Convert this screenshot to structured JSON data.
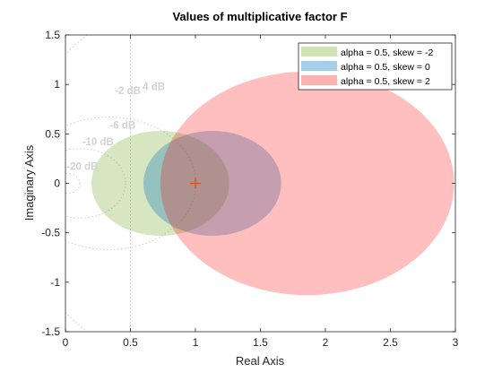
{
  "chart_data": {
    "type": "scatter",
    "title": "Values of multiplicative factor F",
    "xlabel": "Real Axis",
    "ylabel": "Imaginary Axis",
    "xlim": [
      0,
      3
    ],
    "ylim": [
      -1.5,
      1.5
    ],
    "xticks": [
      0,
      0.5,
      1,
      1.5,
      2,
      2.5,
      3
    ],
    "xtick_labels": [
      "0",
      "0.5",
      "1",
      "1.5",
      "2",
      "2.5",
      "3"
    ],
    "yticks": [
      1.5,
      1,
      0.5,
      0,
      -0.5,
      -1,
      -1.5
    ],
    "ytick_labels": [
      "1.5",
      "1",
      "0.5",
      "0",
      "-0.5",
      "-1",
      "-1.5"
    ],
    "grid": false,
    "legend_location": "top-right",
    "series": [
      {
        "name": "alpha = 0.5, skew = -2",
        "shape": "disk",
        "center": [
          0.73,
          0
        ],
        "radii": [
          0.53,
          0.53
        ],
        "color": "#77AC30",
        "opacity": 0.3
      },
      {
        "name": "alpha = 0.5, skew = 0",
        "shape": "disk",
        "center": [
          1.13,
          0
        ],
        "radii": [
          0.53,
          0.53
        ],
        "color": "#0072BD",
        "opacity": 0.3
      },
      {
        "name": "alpha = 0.5, skew = 2",
        "shape": "disk",
        "center": [
          1.86,
          0
        ],
        "radii": [
          1.13,
          1.13
        ],
        "color": "#FF0000",
        "opacity": 0.25
      }
    ],
    "nominal_marker": {
      "x": 1,
      "y": 0,
      "symbol": "+",
      "color": "#D95319"
    },
    "db_contours": [
      {
        "label": "-20 dB",
        "label_at": [
          0.13,
          0.17
        ]
      },
      {
        "label": "-10 dB",
        "label_at": [
          0.25,
          0.42
        ]
      },
      {
        "label": "-6 dB",
        "label_at": [
          0.44,
          0.59
        ]
      },
      {
        "label": "-2 dB",
        "label_at": [
          0.48,
          0.94
        ]
      },
      {
        "label": "4 dB",
        "label_at": [
          0.68,
          0.98
        ]
      }
    ]
  }
}
